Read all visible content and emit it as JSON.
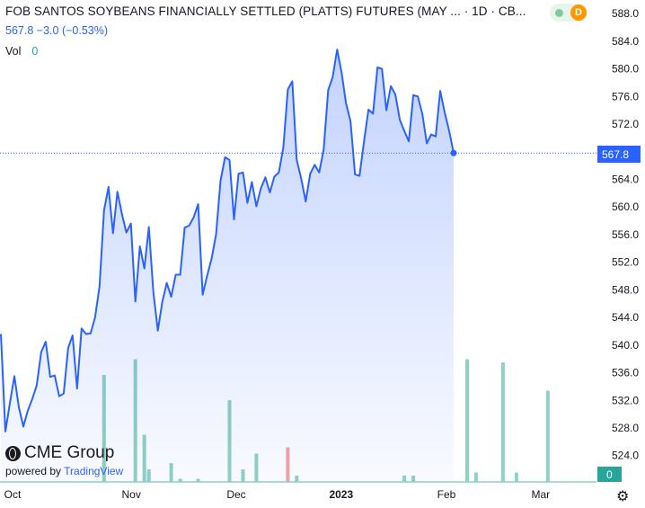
{
  "header": {
    "title": "FOB SANTOS SOYBEANS FINANCIALLY SETTLED (PLATTS) FUTURES (MAY ... · 1D · CB...",
    "last": "567.8",
    "change": "−3.0",
    "change_pct": "(−0.53%)",
    "vol_label": "Vol",
    "vol_value": "0",
    "status_badge": "D"
  },
  "branding": {
    "brand": "CME Group",
    "powered_by": "powered by",
    "platform": "TradingView"
  },
  "colors": {
    "line": "#2962ff",
    "vol_up": "#26a69a",
    "vol_down": "#ef5350",
    "badge": "#ff9800"
  },
  "chart_data": {
    "type": "area",
    "price_axis": {
      "ticks": [
        "588.0",
        "584.0",
        "580.0",
        "576.0",
        "572.0",
        "568.0",
        "564.0",
        "560.0",
        "556.0",
        "552.0",
        "548.0",
        "544.0",
        "540.0",
        "536.0",
        "532.0",
        "528.0",
        "524.0"
      ],
      "range": [
        522.6,
        588.6
      ],
      "last_label": "567.8",
      "last_value": 567.8
    },
    "volume_axis": {
      "last_label": "0"
    },
    "x_axis": {
      "labels": [
        "Oct",
        "Nov",
        "Dec",
        "2023",
        "Feb",
        "Mar"
      ],
      "label_index": [
        0.2,
        26.7,
        50.1,
        73.5,
        97.0,
        118.0
      ]
    },
    "series": [
      {
        "values": [
          541.6,
          527.5,
          531.6,
          535.5,
          531.0,
          528.2,
          530.5,
          532.2,
          534.2,
          539.0,
          540.5,
          535.4,
          535.6,
          532.6,
          533.0,
          539.6,
          541.4,
          533.7,
          542.4,
          541.6,
          541.7,
          544.0,
          548.5,
          559.5,
          562.9,
          556.2,
          562.2,
          559.0,
          556.3,
          557.6,
          546.3,
          554.3,
          551.1,
          557.1,
          547.7,
          542.1,
          546.2,
          549.0,
          547.0,
          550.2,
          550.2,
          557.0,
          557.3,
          558.5,
          560.4,
          547.3,
          550.0,
          552.5,
          556.0,
          563.8,
          567.2,
          566.8,
          558.2,
          564.8,
          565.0,
          560.6,
          563.6,
          560.1,
          562.7,
          564.3,
          562.1,
          564.4,
          565.0,
          568.6,
          577.0,
          578.2,
          566.8,
          564.1,
          560.8,
          564.8,
          566.1,
          565.0,
          568.3,
          576.9,
          578.8,
          582.8,
          579.5,
          575.0,
          572.4,
          564.7,
          564.5,
          569.5,
          574.1,
          573.5,
          580.2,
          580.0,
          574.0,
          577.5,
          576.3,
          572.6,
          571.0,
          569.5,
          576.2,
          576.0,
          573.5,
          569.2,
          570.5,
          570.2,
          576.8,
          573.7,
          571.0,
          567.8
        ]
      }
    ],
    "volume": {
      "bars": [
        {
          "i": 23,
          "v": 34
        },
        {
          "i": 30,
          "v": 39
        },
        {
          "i": 32,
          "v": 15
        },
        {
          "i": 33,
          "v": 4
        },
        {
          "i": 38,
          "v": 6
        },
        {
          "i": 40,
          "v": 1
        },
        {
          "i": 44,
          "v": 1
        },
        {
          "i": 51,
          "v": 26
        },
        {
          "i": 54,
          "v": 4
        },
        {
          "i": 57,
          "v": 9
        },
        {
          "i": 64,
          "v": 11,
          "down": true
        },
        {
          "i": 66,
          "v": 2
        },
        {
          "i": 90,
          "v": 2
        },
        {
          "i": 92,
          "v": 2
        },
        {
          "i": 104,
          "v": 39
        },
        {
          "i": 106,
          "v": 3
        },
        {
          "i": 112,
          "v": 38
        },
        {
          "i": 115,
          "v": 3
        },
        {
          "i": 122,
          "v": 29
        }
      ]
    }
  }
}
